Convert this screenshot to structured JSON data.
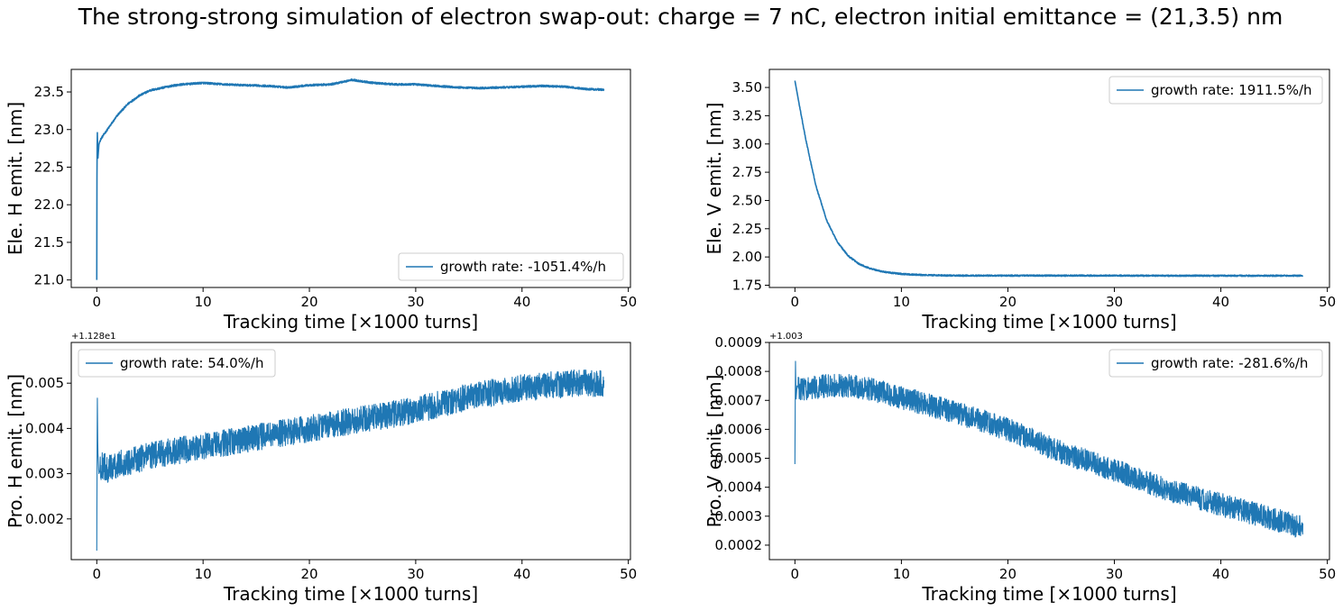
{
  "figure": {
    "title": "The strong-strong simulation of electron swap-out: charge = 7 nC, electron initial emittance = (21,3.5) nm",
    "line_color": "#1f77b4"
  },
  "chart_data": [
    {
      "type": "line",
      "xlabel": "Tracking time [×1000 turns]",
      "ylabel": "Ele. H emit. [nm]",
      "xlim": [
        -2.4,
        50.2
      ],
      "ylim": [
        20.9,
        23.8
      ],
      "x_ticks": [
        0,
        10,
        20,
        30,
        40,
        50
      ],
      "y_ticks": [
        21.0,
        21.5,
        22.0,
        22.5,
        23.0,
        23.5
      ],
      "y_tick_labels": [
        "21.0",
        "21.5",
        "22.0",
        "22.5",
        "23.0",
        "23.5"
      ],
      "y_offset_label": "",
      "legend_position": "lower-right",
      "noise": 0.012,
      "series": [
        {
          "name": "growth rate: -1051.4%/h",
          "x": [
            0,
            0.02,
            0.05,
            0.1,
            0.2,
            0.3,
            0.5,
            1,
            2,
            3,
            4,
            5,
            6,
            7,
            8,
            9,
            10,
            12,
            14,
            16,
            18,
            20,
            22,
            24,
            26,
            28,
            30,
            32,
            34,
            36,
            38,
            40,
            42,
            44,
            46,
            47.7
          ],
          "y": [
            21.0,
            22.5,
            23.0,
            22.6,
            22.8,
            22.85,
            22.9,
            23.0,
            23.2,
            23.35,
            23.45,
            23.52,
            23.55,
            23.58,
            23.6,
            23.61,
            23.62,
            23.6,
            23.59,
            23.58,
            23.56,
            23.59,
            23.6,
            23.66,
            23.62,
            23.6,
            23.6,
            23.58,
            23.56,
            23.55,
            23.56,
            23.57,
            23.58,
            23.57,
            23.54,
            23.53
          ]
        }
      ]
    },
    {
      "type": "line",
      "xlabel": "Tracking time [×1000 turns]",
      "ylabel": "Ele. V emit. [nm]",
      "xlim": [
        -2.4,
        50.2
      ],
      "ylim": [
        1.73,
        3.66
      ],
      "x_ticks": [
        0,
        10,
        20,
        30,
        40,
        50
      ],
      "y_ticks": [
        1.75,
        2.0,
        2.25,
        2.5,
        2.75,
        3.0,
        3.25,
        3.5
      ],
      "y_tick_labels": [
        "1.75",
        "2.00",
        "2.25",
        "2.50",
        "2.75",
        "3.00",
        "3.25",
        "3.50"
      ],
      "y_offset_label": "",
      "legend_position": "upper-right",
      "noise": 0.006,
      "series": [
        {
          "name": "growth rate: 1911.5%/h",
          "x": [
            0,
            0.5,
            1,
            1.5,
            2,
            3,
            4,
            5,
            6,
            7,
            8,
            9,
            10,
            12,
            15,
            20,
            25,
            30,
            35,
            40,
            45,
            47.7
          ],
          "y": [
            3.56,
            3.3,
            3.05,
            2.83,
            2.62,
            2.32,
            2.13,
            2.01,
            1.94,
            1.9,
            1.875,
            1.86,
            1.85,
            1.84,
            1.835,
            1.835,
            1.835,
            1.835,
            1.834,
            1.834,
            1.834,
            1.834
          ]
        }
      ]
    },
    {
      "type": "line",
      "xlabel": "Tracking time [×1000 turns]",
      "ylabel": "Pro. H emit. [nm]",
      "xlim": [
        -2.4,
        50.2
      ],
      "ylim": [
        0.0011,
        0.0059
      ],
      "x_ticks": [
        0,
        10,
        20,
        30,
        40,
        50
      ],
      "y_ticks": [
        0.002,
        0.003,
        0.004,
        0.005
      ],
      "y_tick_labels": [
        "0.002",
        "0.003",
        "0.004",
        "0.005"
      ],
      "y_offset_label": "+1.128e1",
      "legend_position": "upper-left",
      "noise": 0.0003,
      "series": [
        {
          "name": "growth rate: 54.0%/h",
          "x": [
            0,
            0.05,
            0.1,
            0.2,
            0.5,
            1,
            2,
            5,
            10,
            15,
            20,
            25,
            30,
            35,
            40,
            45,
            47.7
          ],
          "y": [
            0.0013,
            0.0048,
            0.0035,
            0.003,
            0.0032,
            0.0031,
            0.0032,
            0.0034,
            0.0036,
            0.0038,
            0.004,
            0.0042,
            0.0044,
            0.0047,
            0.0049,
            0.005,
            0.005
          ]
        }
      ]
    },
    {
      "type": "line",
      "xlabel": "Tracking time [×1000 turns]",
      "ylabel": "Pro. V emit. [nm]",
      "xlim": [
        -2.4,
        50.2
      ],
      "ylim": [
        0.00015,
        0.0009
      ],
      "x_ticks": [
        0,
        10,
        20,
        30,
        40,
        50
      ],
      "y_ticks": [
        0.0002,
        0.0003,
        0.0004,
        0.0005,
        0.0006,
        0.0007,
        0.0008,
        0.0009
      ],
      "y_tick_labels": [
        "0.0002",
        "0.0003",
        "0.0004",
        "0.0005",
        "0.0006",
        "0.0007",
        "0.0008",
        "0.0009"
      ],
      "y_offset_label": "+1.003",
      "legend_position": "upper-right",
      "noise": 4e-05,
      "series": [
        {
          "name": "growth rate: -281.6%/h",
          "x": [
            0,
            0.05,
            0.1,
            0.2,
            0.5,
            1,
            3,
            5,
            7,
            10,
            15,
            20,
            25,
            30,
            35,
            40,
            45,
            47.7
          ],
          "y": [
            0.00048,
            0.00085,
            0.0007,
            0.00075,
            0.00074,
            0.00074,
            0.00075,
            0.00075,
            0.00074,
            0.00071,
            0.00066,
            0.0006,
            0.00052,
            0.00046,
            0.00039,
            0.00034,
            0.00029,
            0.00026
          ]
        }
      ]
    }
  ]
}
